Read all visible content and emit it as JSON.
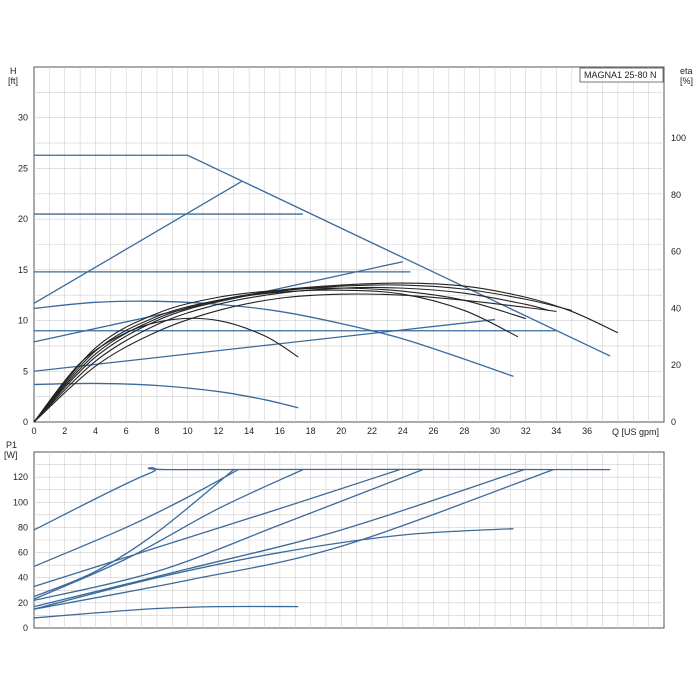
{
  "chart_data": [
    {
      "type": "line",
      "model_label": "MAGNA1 25-80 N",
      "ylabel": "H",
      "ylabel_unit": "[ft]",
      "y2label": "eta",
      "y2label_unit": "[%]",
      "xlabel": "Q [US gpm]",
      "xlim": [
        0,
        41
      ],
      "ylim": [
        0,
        35
      ],
      "y2lim": [
        0,
        125
      ],
      "x_ticks": [
        "0",
        "2",
        "4",
        "6",
        "8",
        "10",
        "12",
        "14",
        "16",
        "18",
        "20",
        "22",
        "24",
        "26",
        "28",
        "30",
        "32",
        "34",
        "36"
      ],
      "y_ticks": [
        "0",
        "5",
        "10",
        "15",
        "20",
        "25",
        "30"
      ],
      "y2_ticks": [
        "0",
        "20",
        "40",
        "60",
        "80",
        "100"
      ],
      "grid": true,
      "series": [
        {
          "color": "#3a6a9c",
          "x": [
            0,
            10,
            37.5
          ],
          "y": [
            26.3,
            26.3,
            6.5
          ]
        },
        {
          "color": "#3a6a9c",
          "x": [
            0,
            17.5
          ],
          "y": [
            20.5,
            20.5
          ]
        },
        {
          "color": "#3a6a9c",
          "x": [
            0,
            24.5
          ],
          "y": [
            14.8,
            14.8
          ]
        },
        {
          "color": "#3a6a9c",
          "x": [
            0,
            34
          ],
          "y": [
            9.0,
            9.0
          ]
        },
        {
          "color": "#3a6a9c",
          "x": [
            0,
            13.5
          ],
          "y": [
            11.7,
            23.7
          ]
        },
        {
          "color": "#3a6a9c",
          "x": [
            0,
            24
          ],
          "y": [
            7.9,
            15.8
          ]
        },
        {
          "color": "#3a6a9c",
          "x": [
            0,
            30
          ],
          "y": [
            5.0,
            10.1
          ]
        },
        {
          "color": "#3a6a9c",
          "x": [
            0,
            4,
            8,
            12,
            16,
            20,
            24,
            28,
            31.2
          ],
          "y": [
            11.2,
            11.8,
            11.9,
            11.6,
            10.9,
            9.7,
            8.2,
            6.2,
            4.5
          ]
        },
        {
          "color": "#3a6a9c",
          "x": [
            0,
            4,
            8,
            12,
            15,
            17.2
          ],
          "y": [
            3.7,
            3.8,
            3.6,
            3.0,
            2.2,
            1.4
          ]
        },
        {
          "color": "#222222",
          "x": [
            0,
            4,
            8,
            12,
            16,
            20,
            24,
            28,
            32,
            35,
            38
          ],
          "y": [
            0,
            6.7,
            10.2,
            12.0,
            13.0,
            13.5,
            13.7,
            13.4,
            12.3,
            10.9,
            8.8
          ]
        },
        {
          "color": "#222222",
          "x": [
            0,
            4,
            8,
            12,
            16,
            20,
            24,
            28,
            31.5
          ],
          "y": [
            0,
            7.0,
            10.4,
            12.0,
            12.8,
            13.0,
            12.6,
            11.0,
            8.4
          ]
        },
        {
          "color": "#222222",
          "x": [
            0,
            3,
            6,
            9,
            12,
            15,
            17.2
          ],
          "y": [
            0,
            5.8,
            8.8,
            10.1,
            10.0,
            8.5,
            6.4
          ]
        },
        {
          "color": "#222222",
          "x": [
            0,
            4,
            8,
            12,
            16,
            20,
            24,
            28,
            32,
            34
          ],
          "y": [
            0,
            5.5,
            8.9,
            11.0,
            12.2,
            12.6,
            12.5,
            12.0,
            11.3,
            10.9
          ]
        },
        {
          "color": "#222222",
          "x": [
            0,
            4,
            8,
            12,
            16,
            20,
            24,
            28,
            32,
            33.5
          ],
          "y": [
            0,
            6.0,
            9.6,
            11.6,
            12.7,
            13.2,
            13.2,
            12.7,
            11.6,
            11.0
          ]
        },
        {
          "color": "#222222",
          "x": [
            0,
            4,
            8,
            12,
            16,
            20,
            24,
            28,
            32,
            35
          ],
          "y": [
            0,
            6.4,
            10.0,
            11.9,
            12.9,
            13.4,
            13.5,
            13.1,
            12.1,
            11.0
          ]
        },
        {
          "color": "#222222",
          "x": [
            0,
            4,
            8,
            12,
            16,
            20,
            24,
            28,
            32
          ],
          "y": [
            0,
            7.3,
            10.7,
            12.3,
            13.0,
            13.2,
            12.9,
            12.0,
            10.2
          ]
        }
      ]
    },
    {
      "type": "line",
      "ylabel": "P1",
      "ylabel_unit": "[W]",
      "xlim": [
        0,
        41
      ],
      "ylim": [
        0,
        140
      ],
      "y_ticks": [
        "0",
        "20",
        "40",
        "60",
        "80",
        "100",
        "120"
      ],
      "grid": true,
      "series": [
        {
          "color": "#3a6a9c",
          "x": [
            0,
            7.5,
            10,
            37.5
          ],
          "y": [
            78,
            123,
            126,
            126
          ]
        },
        {
          "color": "#3a6a9c",
          "x": [
            0,
            6,
            10,
            13.3
          ],
          "y": [
            49,
            80,
            104,
            126
          ]
        },
        {
          "color": "#3a6a9c",
          "x": [
            0,
            6,
            12,
            17.5
          ],
          "y": [
            23,
            55,
            95,
            126
          ]
        },
        {
          "color": "#3a6a9c",
          "x": [
            0,
            4,
            8,
            13
          ],
          "y": [
            25,
            45,
            76,
            126
          ]
        },
        {
          "color": "#3a6a9c",
          "x": [
            0,
            8,
            16,
            23.8
          ],
          "y": [
            33,
            64,
            95,
            126
          ]
        },
        {
          "color": "#3a6a9c",
          "x": [
            0,
            8,
            16,
            25.3
          ],
          "y": [
            22,
            45,
            82,
            126
          ]
        },
        {
          "color": "#3a6a9c",
          "x": [
            0,
            10,
            20,
            31.9
          ],
          "y": [
            17,
            47,
            78,
            126
          ]
        },
        {
          "color": "#3a6a9c",
          "x": [
            0,
            10,
            20,
            33.8
          ],
          "y": [
            15,
            38,
            65,
            126
          ]
        },
        {
          "color": "#3a6a9c",
          "x": [
            0,
            8,
            16,
            24,
            31.2
          ],
          "y": [
            15,
            40,
            60,
            74,
            79
          ]
        },
        {
          "color": "#3a6a9c",
          "x": [
            0,
            4,
            8,
            12,
            17.2
          ],
          "y": [
            8,
            12,
            15.5,
            17,
            17
          ]
        }
      ]
    }
  ]
}
